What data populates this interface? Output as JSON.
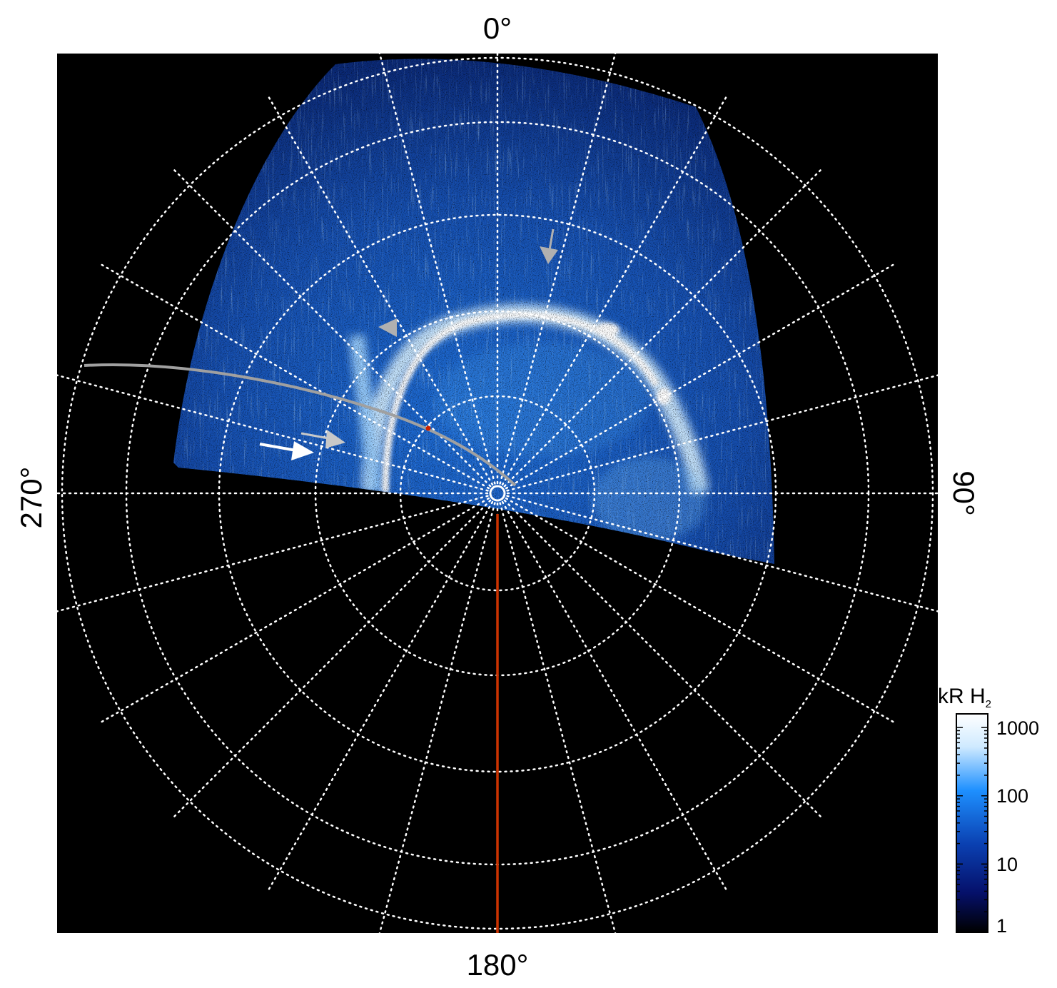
{
  "labels": {
    "top": "0°",
    "left": "270°",
    "right": "90°",
    "bottom": "180°"
  },
  "colorbar": {
    "title": "kR H",
    "title_subscript": "2",
    "ticks": [
      "1000",
      "100",
      "10",
      "1"
    ],
    "colors": [
      "#ffffff",
      "#cfeaff",
      "#1e90ff",
      "#0a3fb0",
      "#05106a",
      "#000000"
    ]
  },
  "colors": {
    "background": "#000000",
    "grid": "#ffffff",
    "footprint_track": "#a0a0a0",
    "meridian_line": "#cc3300",
    "arrow_gray": "#b0b0b0",
    "arrow_white": "#ffffff"
  }
}
